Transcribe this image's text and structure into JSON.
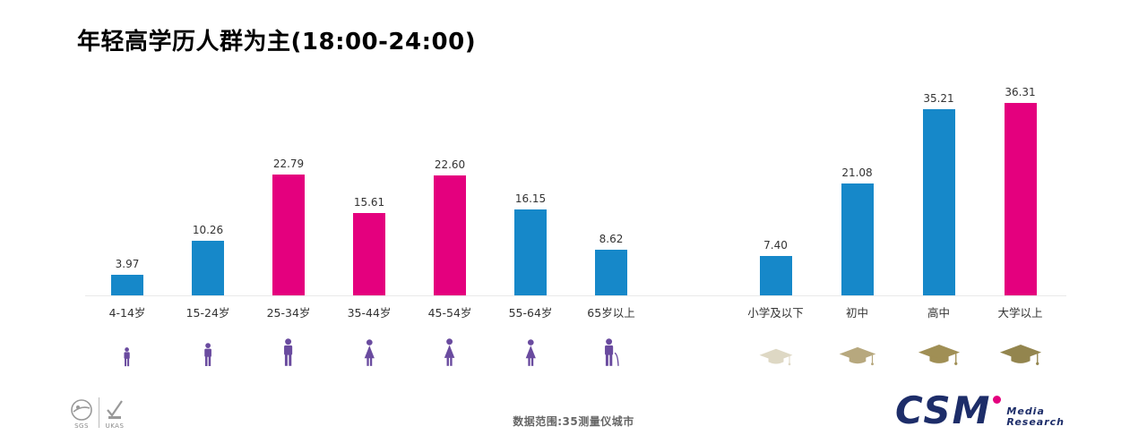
{
  "title": "年轻高学历人群为主(18:00-24:00)",
  "colors": {
    "bar_blue": "#1688c9",
    "bar_pink": "#e4007e",
    "person_purple": "#6a4b9f",
    "logo_navy": "#1d2d69",
    "logo_dot_magenta": "#e4007e"
  },
  "chart_data": {
    "type": "bar",
    "title": "年轻高学历人群为主(18:00-24:00)",
    "xlabel": "",
    "ylabel": "",
    "ylim": [
      0,
      36.31
    ],
    "grid": false,
    "legend": "none",
    "groups": [
      {
        "id": "age",
        "bars": [
          {
            "category": "4-14岁",
            "value": 3.97,
            "label": "3.97",
            "color": "#1688c9",
            "icon": "person-child-icon",
            "icon_color": "#6a4b9f",
            "icon_size": 22
          },
          {
            "category": "15-24岁",
            "value": 10.26,
            "label": "10.26",
            "color": "#1688c9",
            "icon": "person-male-icon",
            "icon_color": "#6a4b9f",
            "icon_size": 27
          },
          {
            "category": "25-34岁",
            "value": 22.79,
            "label": "22.79",
            "color": "#e4007e",
            "icon": "person-male-icon",
            "icon_color": "#6a4b9f",
            "icon_size": 32
          },
          {
            "category": "35-44岁",
            "value": 15.61,
            "label": "15.61",
            "color": "#e4007e",
            "icon": "person-female-icon",
            "icon_color": "#6a4b9f",
            "icon_size": 31
          },
          {
            "category": "45-54岁",
            "value": 22.6,
            "label": "22.60",
            "color": "#e4007e",
            "icon": "person-female-icon",
            "icon_color": "#6a4b9f",
            "icon_size": 32
          },
          {
            "category": "55-64岁",
            "value": 16.15,
            "label": "16.15",
            "color": "#1688c9",
            "icon": "person-female-icon",
            "icon_color": "#6a4b9f",
            "icon_size": 31
          },
          {
            "category": "65岁以上",
            "value": 8.62,
            "label": "8.62",
            "color": "#1688c9",
            "icon": "person-cane-icon",
            "icon_color": "#6a4b9f",
            "icon_size": 32
          }
        ]
      },
      {
        "id": "education",
        "bars": [
          {
            "category": "小学及以下",
            "value": 7.4,
            "label": "7.40",
            "color": "#1688c9",
            "icon": "grad-cap-icon",
            "icon_color": "#ded8c4",
            "icon_size": 40
          },
          {
            "category": "初中",
            "value": 21.08,
            "label": "21.08",
            "color": "#1688c9",
            "icon": "grad-cap-icon",
            "icon_color": "#b7a87e",
            "icon_size": 44
          },
          {
            "category": "高中",
            "value": 35.21,
            "label": "35.21",
            "color": "#1688c9",
            "icon": "grad-cap-icon",
            "icon_color": "#a08f55",
            "icon_size": 50
          },
          {
            "category": "大学以上",
            "value": 36.31,
            "label": "36.31",
            "color": "#e4007e",
            "icon": "grad-cap-icon",
            "icon_color": "#93854e",
            "icon_size": 50
          }
        ]
      }
    ]
  },
  "footer": {
    "note": "数据范围:35测量仪城市",
    "logo": {
      "text": "CSM",
      "sub1": "Media",
      "sub2": "Research"
    },
    "certs": [
      {
        "label": "SGS"
      },
      {
        "label": "UKAS"
      }
    ]
  }
}
